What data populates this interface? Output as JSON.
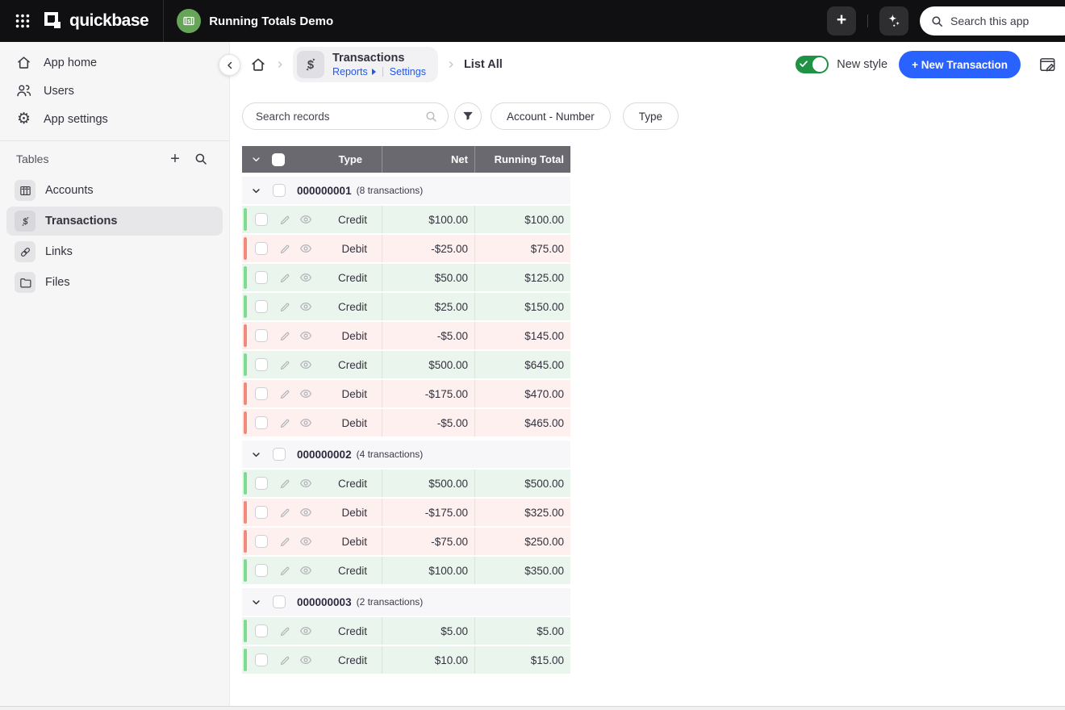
{
  "topbar": {
    "brand": "quickbase",
    "app_name": "Running Totals Demo",
    "search_placeholder": "Search this app"
  },
  "breadcrumb": {
    "table_name": "Transactions",
    "reports_link": "Reports",
    "settings_link": "Settings",
    "report_name": "List All"
  },
  "actions": {
    "style_toggle_label": "New style",
    "style_toggle_on": true,
    "new_record_button": "+ New Transaction"
  },
  "filters": {
    "search_placeholder": "Search records",
    "pills": [
      "Account - Number",
      "Type"
    ]
  },
  "sidebar": {
    "items": [
      {
        "label": "App home",
        "icon": "home-icon"
      },
      {
        "label": "Users",
        "icon": "users-icon"
      },
      {
        "label": "App settings",
        "icon": "gear-icon"
      }
    ],
    "tables_header": "Tables",
    "tables": [
      {
        "label": "Accounts",
        "icon": "accounts-cabinet-icon",
        "selected": false
      },
      {
        "label": "Transactions",
        "icon": "transactions-dollar-icon",
        "selected": true
      },
      {
        "label": "Links",
        "icon": "link-icon",
        "selected": false
      },
      {
        "label": "Files",
        "icon": "folder-icon",
        "selected": false
      }
    ]
  },
  "table": {
    "columns": [
      "Type",
      "Net",
      "Running Total"
    ],
    "groups": [
      {
        "account": "000000001",
        "count_label": "(8 transactions)",
        "rows": [
          {
            "type": "Credit",
            "net": "$100.00",
            "running_total": "$100.00"
          },
          {
            "type": "Debit",
            "net": "-$25.00",
            "running_total": "$75.00"
          },
          {
            "type": "Credit",
            "net": "$50.00",
            "running_total": "$125.00"
          },
          {
            "type": "Credit",
            "net": "$25.00",
            "running_total": "$150.00"
          },
          {
            "type": "Debit",
            "net": "-$5.00",
            "running_total": "$145.00"
          },
          {
            "type": "Credit",
            "net": "$500.00",
            "running_total": "$645.00"
          },
          {
            "type": "Debit",
            "net": "-$175.00",
            "running_total": "$470.00"
          },
          {
            "type": "Debit",
            "net": "-$5.00",
            "running_total": "$465.00"
          }
        ]
      },
      {
        "account": "000000002",
        "count_label": "(4 transactions)",
        "rows": [
          {
            "type": "Credit",
            "net": "$500.00",
            "running_total": "$500.00"
          },
          {
            "type": "Debit",
            "net": "-$175.00",
            "running_total": "$325.00"
          },
          {
            "type": "Debit",
            "net": "-$75.00",
            "running_total": "$250.00"
          },
          {
            "type": "Credit",
            "net": "$100.00",
            "running_total": "$350.00"
          }
        ]
      },
      {
        "account": "000000003",
        "count_label": "(2 transactions)",
        "rows": [
          {
            "type": "Credit",
            "net": "$5.00",
            "running_total": "$5.00"
          },
          {
            "type": "Credit",
            "net": "$10.00",
            "running_total": "$15.00"
          }
        ]
      }
    ]
  },
  "icons": {
    "plus": "+",
    "gear": "⚙",
    "waffle-grid-icon": "3x3-dots",
    "sparkles-icon": "ai-sparkles",
    "search-icon": "magnifier",
    "filter-icon": "funnel",
    "edit-pencil-icon": "pencil",
    "quick-view-icon": "eye",
    "page-edit-icon": "page-with-pencil"
  },
  "colors": {
    "accent_blue": "#2962ff",
    "link_blue": "#2457e6",
    "toggle_green": "#1f9245",
    "app_icon_green": "#66a559",
    "credit_bar": "#7edc8f",
    "debit_bar": "#f18a7b",
    "credit_bg": "#eaf6ed",
    "debit_bg": "#fdf0ef",
    "table_header_gray": "#6a6970"
  }
}
